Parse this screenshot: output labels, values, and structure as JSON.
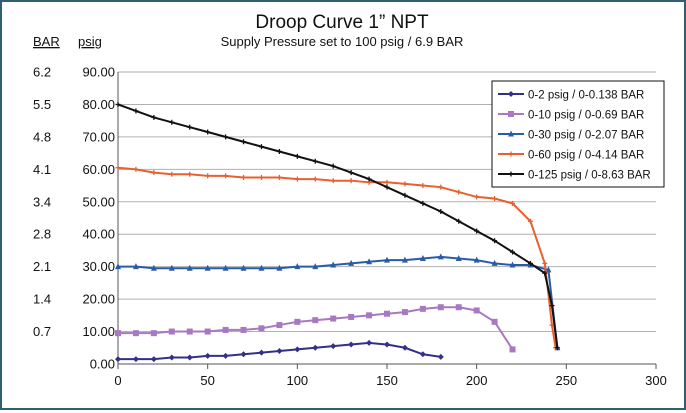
{
  "chart_data": {
    "type": "line",
    "title": "Droop Curve 1” NPT",
    "subtitle": "Supply Pressure set to 100 psig / 6.9 BAR",
    "xlabel": "",
    "ylabel": "psig",
    "ylabel_secondary": "BAR",
    "xlim": [
      0,
      300
    ],
    "ylim": [
      0,
      90
    ],
    "x_ticks": [
      "0",
      "50",
      "100",
      "150",
      "200",
      "250",
      "300"
    ],
    "y_ticks": [
      "0.00",
      "10.00",
      "20.00",
      "30.00",
      "40.00",
      "50.00",
      "60.00",
      "70.00",
      "80.00",
      "90.00"
    ],
    "y_ticks_bar": [
      "",
      "0.7",
      "1.4",
      "2.1",
      "2.8",
      "3.4",
      "4.1",
      "4.8",
      "5.5",
      "6.2"
    ],
    "grid": "horizontal",
    "legend_position": "top-right",
    "series": [
      {
        "name": "0-2 psig / 0-0.138 BAR",
        "color": "#33308a",
        "marker": "diamond",
        "points": [
          [
            0,
            1.5
          ],
          [
            10,
            1.5
          ],
          [
            20,
            1.5
          ],
          [
            30,
            2
          ],
          [
            40,
            2
          ],
          [
            50,
            2.5
          ],
          [
            60,
            2.5
          ],
          [
            70,
            3
          ],
          [
            80,
            3.5
          ],
          [
            90,
            4
          ],
          [
            100,
            4.5
          ],
          [
            110,
            5
          ],
          [
            120,
            5.5
          ],
          [
            130,
            6
          ],
          [
            140,
            6.5
          ],
          [
            150,
            6
          ],
          [
            160,
            5
          ],
          [
            170,
            3
          ],
          [
            180,
            2.2
          ]
        ]
      },
      {
        "name": "0-10 psig / 0-0.69 BAR",
        "color": "#a878c0",
        "marker": "square",
        "points": [
          [
            0,
            9.5
          ],
          [
            10,
            9.5
          ],
          [
            20,
            9.5
          ],
          [
            30,
            10
          ],
          [
            40,
            10
          ],
          [
            50,
            10
          ],
          [
            60,
            10.5
          ],
          [
            70,
            10.5
          ],
          [
            80,
            11
          ],
          [
            90,
            12
          ],
          [
            100,
            13
          ],
          [
            110,
            13.5
          ],
          [
            120,
            14
          ],
          [
            130,
            14.5
          ],
          [
            140,
            15
          ],
          [
            150,
            15.5
          ],
          [
            160,
            16
          ],
          [
            170,
            17
          ],
          [
            180,
            17.5
          ],
          [
            190,
            17.5
          ],
          [
            200,
            16.5
          ],
          [
            210,
            13
          ],
          [
            220,
            4.5
          ]
        ]
      },
      {
        "name": "0-30 psig / 0-2.07 BAR",
        "color": "#2a5ba8",
        "marker": "triangle",
        "points": [
          [
            0,
            30
          ],
          [
            10,
            30
          ],
          [
            20,
            29.5
          ],
          [
            30,
            29.5
          ],
          [
            40,
            29.5
          ],
          [
            50,
            29.5
          ],
          [
            60,
            29.5
          ],
          [
            70,
            29.5
          ],
          [
            80,
            29.5
          ],
          [
            90,
            29.5
          ],
          [
            100,
            30
          ],
          [
            110,
            30
          ],
          [
            120,
            30.5
          ],
          [
            130,
            31
          ],
          [
            140,
            31.5
          ],
          [
            150,
            32
          ],
          [
            160,
            32
          ],
          [
            170,
            32.5
          ],
          [
            180,
            33
          ],
          [
            190,
            32.5
          ],
          [
            200,
            32
          ],
          [
            210,
            31
          ],
          [
            220,
            30.5
          ],
          [
            230,
            30.5
          ],
          [
            240,
            29
          ],
          [
            245,
            5
          ]
        ]
      },
      {
        "name": "0-60 psig / 0-4.14 BAR",
        "color": "#e8602e",
        "marker": "cross",
        "points": [
          [
            0,
            60.5
          ],
          [
            10,
            60
          ],
          [
            20,
            59
          ],
          [
            30,
            58.5
          ],
          [
            40,
            58.5
          ],
          [
            50,
            58
          ],
          [
            60,
            58
          ],
          [
            70,
            57.5
          ],
          [
            80,
            57.5
          ],
          [
            90,
            57.5
          ],
          [
            100,
            57
          ],
          [
            110,
            57
          ],
          [
            120,
            56.5
          ],
          [
            130,
            56.5
          ],
          [
            140,
            56
          ],
          [
            150,
            56
          ],
          [
            160,
            55.5
          ],
          [
            170,
            55
          ],
          [
            180,
            54.5
          ],
          [
            190,
            53
          ],
          [
            200,
            51.5
          ],
          [
            210,
            51
          ],
          [
            220,
            49.5
          ],
          [
            230,
            44
          ],
          [
            238,
            31
          ],
          [
            242,
            12
          ],
          [
            244,
            5
          ]
        ]
      },
      {
        "name": "0-125 psig / 0-8.63 BAR",
        "color": "#111111",
        "marker": "cross",
        "points": [
          [
            0,
            80
          ],
          [
            10,
            78
          ],
          [
            20,
            76
          ],
          [
            30,
            74.5
          ],
          [
            40,
            73
          ],
          [
            50,
            71.5
          ],
          [
            60,
            70
          ],
          [
            70,
            68.5
          ],
          [
            80,
            67
          ],
          [
            90,
            65.5
          ],
          [
            100,
            64
          ],
          [
            110,
            62.5
          ],
          [
            120,
            61
          ],
          [
            130,
            59
          ],
          [
            140,
            57
          ],
          [
            150,
            54.5
          ],
          [
            160,
            52
          ],
          [
            170,
            49.5
          ],
          [
            180,
            47
          ],
          [
            190,
            44
          ],
          [
            200,
            41
          ],
          [
            210,
            38
          ],
          [
            220,
            34.5
          ],
          [
            230,
            31
          ],
          [
            238,
            28
          ],
          [
            242,
            18
          ],
          [
            245,
            5
          ]
        ]
      }
    ]
  }
}
